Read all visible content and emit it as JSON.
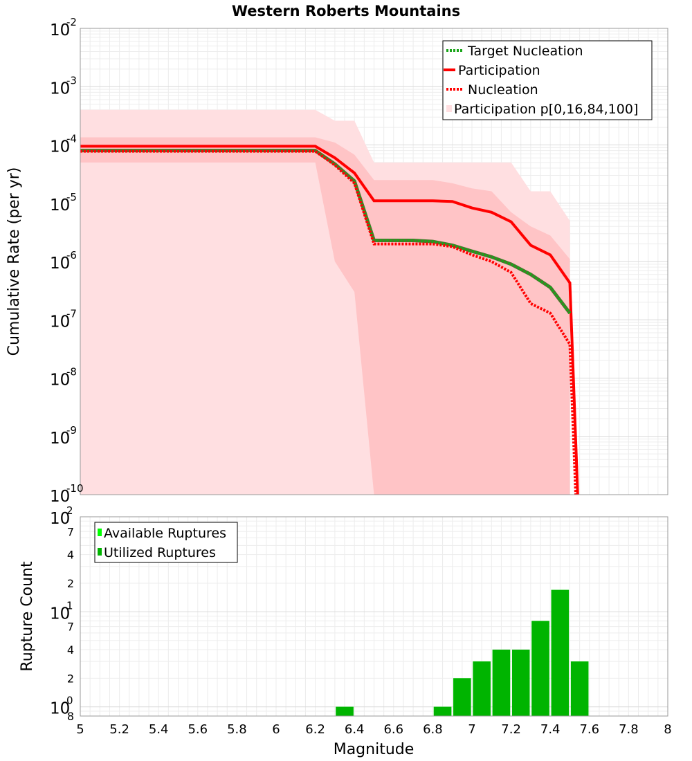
{
  "chart_data": [
    {
      "type": "line",
      "title": "Western Roberts Mountains",
      "xlabel": "",
      "ylabel": "Cumulative Rate (per yr)",
      "xlim": [
        5,
        8
      ],
      "ylim": [
        1e-10,
        0.01
      ],
      "yscale": "log",
      "grid": true,
      "legend_position": "top-right",
      "x_ticks": [
        "5",
        "5.2",
        "5.4",
        "5.6",
        "5.8",
        "6",
        "6.2",
        "6.4",
        "6.6",
        "6.8",
        "7",
        "7.2",
        "7.4",
        "7.6",
        "7.8",
        "8"
      ],
      "y_tick_base": "10",
      "y_tick_exponents": [
        "-2",
        "-3",
        "-4",
        "-5",
        "-6",
        "-7",
        "-8",
        "-9",
        "-10"
      ],
      "colors": {
        "target": "#1aa51a",
        "target_dark": "#556b2f",
        "participation": "#ff0000",
        "nucleation": "#ff0000",
        "band_outer": "#ffdfe1",
        "band_inner": "#ffc4c6"
      },
      "series": [
        {
          "name": "Target Nucleation",
          "style": "dotted",
          "x": [
            5.0,
            6.2,
            6.3,
            6.4,
            6.5,
            6.6,
            6.7,
            6.8,
            6.9,
            7.0,
            7.1,
            7.2,
            7.3,
            7.4,
            7.5
          ],
          "y": [
            8e-05,
            8e-05,
            4.7e-05,
            2.4e-05,
            2.3e-06,
            2.3e-06,
            2.3e-06,
            2.2e-06,
            1.9e-06,
            1.5e-06,
            1.2e-06,
            9e-07,
            6e-07,
            3.6e-07,
            1.3e-07
          ]
        },
        {
          "name": "Participation",
          "style": "solid",
          "x": [
            5.0,
            6.2,
            6.3,
            6.4,
            6.5,
            6.6,
            6.7,
            6.8,
            6.9,
            7.0,
            7.1,
            7.2,
            7.3,
            7.4,
            7.5,
            7.54
          ],
          "y": [
            9.5e-05,
            9.5e-05,
            6e-05,
            3.3e-05,
            1.1e-05,
            1.1e-05,
            1.1e-05,
            1.1e-05,
            1.07e-05,
            8.3e-06,
            7e-06,
            4.8e-06,
            1.9e-06,
            1.3e-06,
            4.3e-07,
            1e-10
          ]
        },
        {
          "name": "Nucleation",
          "style": "dotted",
          "x": [
            5.0,
            6.2,
            6.3,
            6.4,
            6.5,
            6.6,
            6.7,
            6.8,
            6.9,
            7.0,
            7.1,
            7.2,
            7.3,
            7.4,
            7.5,
            7.53
          ],
          "y": [
            7.8e-05,
            7.8e-05,
            4.5e-05,
            2.2e-05,
            2e-06,
            2e-06,
            2e-06,
            2e-06,
            1.8e-06,
            1.3e-06,
            1e-06,
            6.5e-07,
            1.9e-07,
            1.3e-07,
            3.8e-08,
            1e-10
          ]
        },
        {
          "name": "Participation p[0,16,84,100]",
          "style": "band",
          "x": [
            5.0,
            6.2,
            6.3,
            6.4,
            6.5,
            6.6,
            6.7,
            6.8,
            6.9,
            7.0,
            7.1,
            7.2,
            7.3,
            7.4,
            7.5
          ],
          "p0": [
            1e-10,
            1e-10,
            1e-10,
            1e-10,
            1e-10,
            1e-10,
            1e-10,
            1e-10,
            1e-10,
            1e-10,
            1e-10,
            1e-10,
            1e-10,
            1e-10,
            1e-10
          ],
          "p16": [
            5e-05,
            5e-05,
            1e-06,
            3e-07,
            1e-10,
            1e-10,
            1e-10,
            1e-10,
            1e-10,
            1e-10,
            1e-10,
            1e-10,
            1e-10,
            1e-10,
            1e-10
          ],
          "p84": [
            0.000135,
            0.000135,
            0.00011,
            6.8e-05,
            2.5e-05,
            2.5e-05,
            2.5e-05,
            2.5e-05,
            2.2e-05,
            1.8e-05,
            1.6e-05,
            7e-06,
            4e-06,
            2.8e-06,
            1.1e-06
          ],
          "p100": [
            0.0004,
            0.0004,
            0.00026,
            0.00026,
            5e-05,
            5e-05,
            5e-05,
            5e-05,
            5e-05,
            5e-05,
            5e-05,
            5e-05,
            1.6e-05,
            1.6e-05,
            5e-06
          ]
        }
      ]
    },
    {
      "type": "bar",
      "title": "",
      "xlabel": "Magnitude",
      "ylabel": "Rupture Count",
      "xlim": [
        5,
        8
      ],
      "ylim": [
        0.8,
        100
      ],
      "yscale": "log",
      "grid": true,
      "legend_position": "top-left",
      "bar_width": 0.09,
      "y_major_ticks": [
        {
          "value": 1,
          "exp": "0"
        },
        {
          "value": 10,
          "exp": "1"
        },
        {
          "value": 100,
          "exp": "2"
        }
      ],
      "y_minor_labels": [
        {
          "value": 0.8,
          "label": "8"
        },
        {
          "value": 2,
          "label": "2"
        },
        {
          "value": 4,
          "label": "4"
        },
        {
          "value": 7,
          "label": "7"
        },
        {
          "value": 20,
          "label": "2"
        },
        {
          "value": 40,
          "label": "4"
        },
        {
          "value": 70,
          "label": "7"
        }
      ],
      "colors": {
        "available": "#00ff00",
        "utilized": "#00b400"
      },
      "series": [
        {
          "name": "Available Ruptures",
          "x": [
            6.35,
            6.85,
            6.95,
            7.05,
            7.15,
            7.25,
            7.35,
            7.45,
            7.55
          ],
          "values": [
            1,
            1,
            2,
            3,
            4,
            4,
            8,
            17,
            3
          ]
        },
        {
          "name": "Utilized Ruptures",
          "x": [
            6.35,
            6.85,
            6.95,
            7.05,
            7.15,
            7.25,
            7.35,
            7.45,
            7.55
          ],
          "values": [
            1,
            1,
            2,
            3,
            4,
            4,
            8,
            17,
            3
          ]
        }
      ]
    }
  ]
}
